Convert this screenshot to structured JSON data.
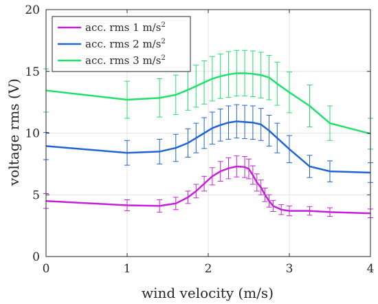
{
  "chart_data": {
    "type": "line",
    "xlabel": "wind velocity (m/s)",
    "ylabel": "voltage rms (V)",
    "xlim": [
      0,
      4
    ],
    "ylim": [
      0,
      20
    ],
    "xticks": [
      0,
      1,
      2,
      3,
      4
    ],
    "yticks": [
      0,
      5,
      10,
      15,
      20
    ],
    "grid": true,
    "legend_position": "top-left",
    "series": [
      {
        "name": "acc. rms 1 m/s",
        "superscript": "2",
        "color": "#c61fd9",
        "points": [
          {
            "x": 0.0,
            "y": 4.5,
            "err": 0.6
          },
          {
            "x": 1.0,
            "y": 4.15,
            "err": 0.45
          },
          {
            "x": 1.4,
            "y": 4.1,
            "err": 0.5
          },
          {
            "x": 1.6,
            "y": 4.3,
            "err": 0.5
          },
          {
            "x": 1.75,
            "y": 4.8,
            "err": 0.5
          },
          {
            "x": 1.85,
            "y": 5.3,
            "err": 0.55
          },
          {
            "x": 1.95,
            "y": 5.9,
            "err": 0.6
          },
          {
            "x": 2.05,
            "y": 6.5,
            "err": 0.7
          },
          {
            "x": 2.15,
            "y": 6.9,
            "err": 0.8
          },
          {
            "x": 2.25,
            "y": 7.15,
            "err": 0.85
          },
          {
            "x": 2.35,
            "y": 7.3,
            "err": 0.85
          },
          {
            "x": 2.45,
            "y": 7.25,
            "err": 0.85
          },
          {
            "x": 2.5,
            "y": 7.1,
            "err": 0.8
          },
          {
            "x": 2.55,
            "y": 6.6,
            "err": 0.75
          },
          {
            "x": 2.6,
            "y": 6.0,
            "err": 0.7
          },
          {
            "x": 2.65,
            "y": 5.6,
            "err": 0.6
          },
          {
            "x": 2.7,
            "y": 5.0,
            "err": 0.55
          },
          {
            "x": 2.75,
            "y": 4.5,
            "err": 0.5
          },
          {
            "x": 2.8,
            "y": 4.1,
            "err": 0.45
          },
          {
            "x": 2.9,
            "y": 3.8,
            "err": 0.4
          },
          {
            "x": 3.0,
            "y": 3.7,
            "err": 0.4
          },
          {
            "x": 3.25,
            "y": 3.7,
            "err": 0.35
          },
          {
            "x": 3.5,
            "y": 3.6,
            "err": 0.35
          },
          {
            "x": 4.0,
            "y": 3.5,
            "err": 0.35
          }
        ]
      },
      {
        "name": "acc. rms 2 m/s",
        "superscript": "2",
        "color": "#1f63d6",
        "points": [
          {
            "x": 0.0,
            "y": 8.95,
            "err": 1.1
          },
          {
            "x": 1.0,
            "y": 8.4,
            "err": 1.0
          },
          {
            "x": 1.4,
            "y": 8.5,
            "err": 1.0
          },
          {
            "x": 1.6,
            "y": 8.8,
            "err": 1.1
          },
          {
            "x": 1.75,
            "y": 9.2,
            "err": 1.15
          },
          {
            "x": 1.85,
            "y": 9.6,
            "err": 1.2
          },
          {
            "x": 1.95,
            "y": 10.0,
            "err": 1.25
          },
          {
            "x": 2.05,
            "y": 10.4,
            "err": 1.3
          },
          {
            "x": 2.15,
            "y": 10.65,
            "err": 1.3
          },
          {
            "x": 2.25,
            "y": 10.85,
            "err": 1.35
          },
          {
            "x": 2.35,
            "y": 10.95,
            "err": 1.35
          },
          {
            "x": 2.45,
            "y": 10.9,
            "err": 1.35
          },
          {
            "x": 2.55,
            "y": 10.85,
            "err": 1.35
          },
          {
            "x": 2.65,
            "y": 10.7,
            "err": 1.3
          },
          {
            "x": 2.75,
            "y": 10.2,
            "err": 1.25
          },
          {
            "x": 2.85,
            "y": 9.6,
            "err": 1.2
          },
          {
            "x": 3.0,
            "y": 8.7,
            "err": 1.1
          },
          {
            "x": 3.25,
            "y": 7.3,
            "err": 0.9
          },
          {
            "x": 3.5,
            "y": 6.9,
            "err": 0.85
          },
          {
            "x": 4.0,
            "y": 6.8,
            "err": 0.8
          }
        ]
      },
      {
        "name": "acc. rms 3 m/s",
        "superscript": "2",
        "color": "#1fe06a",
        "points": [
          {
            "x": 0.0,
            "y": 13.45,
            "err": 1.75
          },
          {
            "x": 1.0,
            "y": 12.7,
            "err": 1.5
          },
          {
            "x": 1.4,
            "y": 12.85,
            "err": 1.55
          },
          {
            "x": 1.6,
            "y": 13.1,
            "err": 1.6
          },
          {
            "x": 1.75,
            "y": 13.5,
            "err": 1.65
          },
          {
            "x": 1.85,
            "y": 13.8,
            "err": 1.7
          },
          {
            "x": 1.95,
            "y": 14.1,
            "err": 1.75
          },
          {
            "x": 2.05,
            "y": 14.4,
            "err": 1.8
          },
          {
            "x": 2.15,
            "y": 14.6,
            "err": 1.8
          },
          {
            "x": 2.25,
            "y": 14.75,
            "err": 1.85
          },
          {
            "x": 2.35,
            "y": 14.85,
            "err": 1.85
          },
          {
            "x": 2.45,
            "y": 14.85,
            "err": 1.85
          },
          {
            "x": 2.55,
            "y": 14.8,
            "err": 1.85
          },
          {
            "x": 2.65,
            "y": 14.7,
            "err": 1.85
          },
          {
            "x": 2.75,
            "y": 14.5,
            "err": 1.8
          },
          {
            "x": 2.85,
            "y": 14.0,
            "err": 1.75
          },
          {
            "x": 3.0,
            "y": 13.3,
            "err": 1.65
          },
          {
            "x": 3.25,
            "y": 12.2,
            "err": 1.7
          },
          {
            "x": 3.5,
            "y": 10.8,
            "err": 1.4
          },
          {
            "x": 4.0,
            "y": 9.95,
            "err": 1.25
          }
        ]
      }
    ]
  }
}
